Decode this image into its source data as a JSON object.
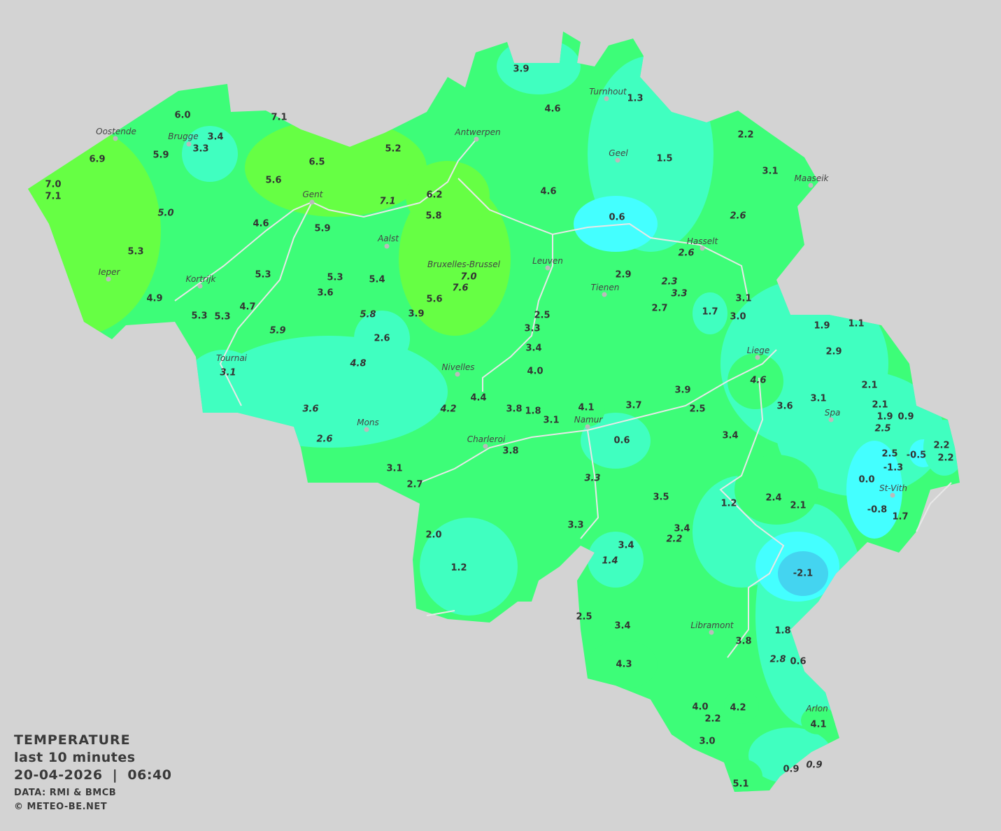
{
  "legend": {
    "title": "TEMPERATURE",
    "period": "last 10 minutes",
    "datetime": "20-04-2026  |  06:40",
    "source": "DATA: RMI & BMCB",
    "copyright": "© METEO-BE.NET"
  },
  "colors": {
    "background": "#d3d3d3",
    "warm_lime": "#66ff44",
    "green": "#3dfd78",
    "mint": "#40ffc0",
    "cyan": "#44ffff",
    "cold_blue": "#44d4f0",
    "rivers": "#e8e8e8",
    "city_dot": "#bbbbbb"
  },
  "cities": [
    "Oostende",
    "Brugge",
    "Antwerpen",
    "Turnhout",
    "Geel",
    "Maaseik",
    "Gent",
    "Aalst",
    "Hasselt",
    "Leuven",
    "Ieper",
    "Kortrijk",
    "Bruxelles-Brussel",
    "Tienen",
    "Liege",
    "Tournai",
    "Nivelles",
    "Spa",
    "Mons",
    "Namur",
    "Charleroi",
    "St-Vith",
    "Libramont",
    "Arlon"
  ],
  "stations": [
    {
      "v": "3.9"
    },
    {
      "v": "4.6"
    },
    {
      "v": "1.3"
    },
    {
      "v": "6.0"
    },
    {
      "v": "7.1"
    },
    {
      "v": "3.4"
    },
    {
      "v": "3.3"
    },
    {
      "v": "5.9"
    },
    {
      "v": "6.9"
    },
    {
      "v": "5.2"
    },
    {
      "v": "6.5"
    },
    {
      "v": "1.5"
    },
    {
      "v": "2.2"
    },
    {
      "v": "3.1"
    },
    {
      "v": "7.0"
    },
    {
      "v": "7.1"
    },
    {
      "v": "5.6"
    },
    {
      "v": "4.6"
    },
    {
      "v": "6.2"
    },
    {
      "v": "7.1",
      "italic": true
    },
    {
      "v": "5.0",
      "italic": true
    },
    {
      "v": "5.8"
    },
    {
      "v": "0.6"
    },
    {
      "v": "2.6",
      "italic": true
    },
    {
      "v": "4.6"
    },
    {
      "v": "5.9"
    },
    {
      "v": "2.6",
      "italic": true
    },
    {
      "v": "5.3"
    },
    {
      "v": "5.3"
    },
    {
      "v": "5.3"
    },
    {
      "v": "5.4"
    },
    {
      "v": "7.0",
      "italic": true
    },
    {
      "v": "7.6",
      "italic": true
    },
    {
      "v": "2.9"
    },
    {
      "v": "2.3",
      "italic": true
    },
    {
      "v": "3.3",
      "italic": true
    },
    {
      "v": "3.6"
    },
    {
      "v": "5.6"
    },
    {
      "v": "4.9"
    },
    {
      "v": "4.7"
    },
    {
      "v": "2.7"
    },
    {
      "v": "1.7"
    },
    {
      "v": "3.1"
    },
    {
      "v": "3.0"
    },
    {
      "v": "5.3"
    },
    {
      "v": "5.3"
    },
    {
      "v": "5.8",
      "italic": true
    },
    {
      "v": "3.9"
    },
    {
      "v": "2.5"
    },
    {
      "v": "3.3"
    },
    {
      "v": "1.9"
    },
    {
      "v": "1.1"
    },
    {
      "v": "5.9",
      "italic": true
    },
    {
      "v": "2.6"
    },
    {
      "v": "3.4"
    },
    {
      "v": "2.9"
    },
    {
      "v": "3.1",
      "italic": true
    },
    {
      "v": "4.8",
      "italic": true
    },
    {
      "v": "4.0"
    },
    {
      "v": "4.6",
      "italic": true
    },
    {
      "v": "2.1"
    },
    {
      "v": "4.4"
    },
    {
      "v": "3.8"
    },
    {
      "v": "1.8"
    },
    {
      "v": "4.1"
    },
    {
      "v": "3.7"
    },
    {
      "v": "3.9"
    },
    {
      "v": "2.5"
    },
    {
      "v": "3.6"
    },
    {
      "v": "3.1"
    },
    {
      "v": "2.1"
    },
    {
      "v": "1.9"
    },
    {
      "v": "0.9"
    },
    {
      "v": "2.5",
      "italic": true
    },
    {
      "v": "3.6",
      "italic": true
    },
    {
      "v": "4.2",
      "italic": true
    },
    {
      "v": "3.1"
    },
    {
      "v": "3.4"
    },
    {
      "v": "0.6"
    },
    {
      "v": "2.6",
      "italic": true
    },
    {
      "v": "2.5"
    },
    {
      "v": "2.2"
    },
    {
      "v": "-0.5"
    },
    {
      "v": "2.2"
    },
    {
      "v": "-1.3"
    },
    {
      "v": "3.8"
    },
    {
      "v": "3.1"
    },
    {
      "v": "3.3",
      "italic": true
    },
    {
      "v": "0.0"
    },
    {
      "v": "2.7"
    },
    {
      "v": "3.5"
    },
    {
      "v": "1.2"
    },
    {
      "v": "2.4"
    },
    {
      "v": "2.1"
    },
    {
      "v": "-0.8"
    },
    {
      "v": "1.7"
    },
    {
      "v": "3.3"
    },
    {
      "v": "3.4"
    },
    {
      "v": "2.2",
      "italic": true
    },
    {
      "v": "2.0"
    },
    {
      "v": "3.4"
    },
    {
      "v": "1.4",
      "italic": true
    },
    {
      "v": "1.2"
    },
    {
      "v": "-2.1"
    },
    {
      "v": "2.5"
    },
    {
      "v": "3.4"
    },
    {
      "v": "1.8"
    },
    {
      "v": "3.8"
    },
    {
      "v": "2.8",
      "italic": true
    },
    {
      "v": "0.6"
    },
    {
      "v": "4.3"
    },
    {
      "v": "4.0"
    },
    {
      "v": "4.2"
    },
    {
      "v": "2.2"
    },
    {
      "v": "4.1"
    },
    {
      "v": "3.0"
    },
    {
      "v": "0.9"
    },
    {
      "v": "0.9",
      "italic": true
    },
    {
      "v": "5.1"
    }
  ]
}
